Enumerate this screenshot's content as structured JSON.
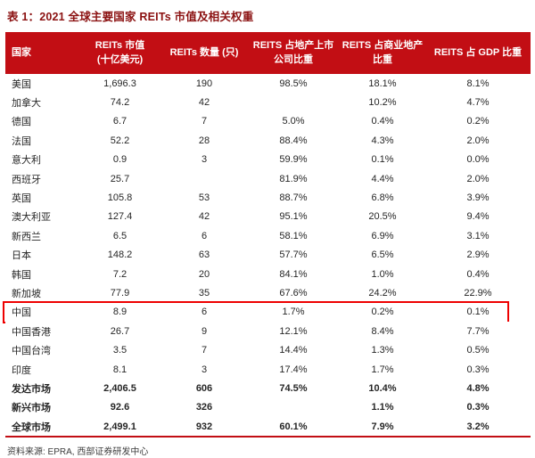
{
  "title": "表 1：2021 全球主要国家 REITs 市值及相关权重",
  "source": "资料来源: EPRA, 西部证券研发中心",
  "colors": {
    "header_bg": "#c20e14",
    "title": "#8b1111",
    "highlight": "#ee0000"
  },
  "table": {
    "columns": [
      "国家",
      "REITs 市值\n(十亿美元)",
      "REITs 数量 (只)",
      "REITS 占地产上市\n公司比重",
      "REITS 占商业地产\n比重",
      "REITS 占 GDP 比重"
    ],
    "rows": [
      {
        "country": "美国",
        "values": [
          "1,696.3",
          "190",
          "98.5%",
          "18.1%",
          "8.1%"
        ],
        "bold": false,
        "highlight": false
      },
      {
        "country": "加拿大",
        "values": [
          "74.2",
          "42",
          "",
          "10.2%",
          "4.7%"
        ],
        "bold": false,
        "highlight": false
      },
      {
        "country": "德国",
        "values": [
          "6.7",
          "7",
          "5.0%",
          "0.4%",
          "0.2%"
        ],
        "bold": false,
        "highlight": false
      },
      {
        "country": "法国",
        "values": [
          "52.2",
          "28",
          "88.4%",
          "4.3%",
          "2.0%"
        ],
        "bold": false,
        "highlight": false
      },
      {
        "country": "意大利",
        "values": [
          "0.9",
          "3",
          "59.9%",
          "0.1%",
          "0.0%"
        ],
        "bold": false,
        "highlight": false
      },
      {
        "country": "西班牙",
        "values": [
          "25.7",
          "",
          "81.9%",
          "4.4%",
          "2.0%"
        ],
        "bold": false,
        "highlight": false
      },
      {
        "country": "英国",
        "values": [
          "105.8",
          "53",
          "88.7%",
          "6.8%",
          "3.9%"
        ],
        "bold": false,
        "highlight": false
      },
      {
        "country": "澳大利亚",
        "values": [
          "127.4",
          "42",
          "95.1%",
          "20.5%",
          "9.4%"
        ],
        "bold": false,
        "highlight": false
      },
      {
        "country": "新西兰",
        "values": [
          "6.5",
          "6",
          "58.1%",
          "6.9%",
          "3.1%"
        ],
        "bold": false,
        "highlight": false
      },
      {
        "country": "日本",
        "values": [
          "148.2",
          "63",
          "57.7%",
          "6.5%",
          "2.9%"
        ],
        "bold": false,
        "highlight": false
      },
      {
        "country": "韩国",
        "values": [
          "7.2",
          "20",
          "84.1%",
          "1.0%",
          "0.4%"
        ],
        "bold": false,
        "highlight": false
      },
      {
        "country": "新加坡",
        "values": [
          "77.9",
          "35",
          "67.6%",
          "24.2%",
          "22.9%"
        ],
        "bold": false,
        "highlight": false
      },
      {
        "country": "中国",
        "values": [
          "8.9",
          "6",
          "1.7%",
          "0.2%",
          "0.1%"
        ],
        "bold": false,
        "highlight": true
      },
      {
        "country": "中国香港",
        "values": [
          "26.7",
          "9",
          "12.1%",
          "8.4%",
          "7.7%"
        ],
        "bold": false,
        "highlight": false
      },
      {
        "country": "中国台湾",
        "values": [
          "3.5",
          "7",
          "14.4%",
          "1.3%",
          "0.5%"
        ],
        "bold": false,
        "highlight": false
      },
      {
        "country": "印度",
        "values": [
          "8.1",
          "3",
          "17.4%",
          "1.7%",
          "0.3%"
        ],
        "bold": false,
        "highlight": false
      },
      {
        "country": "发达市场",
        "values": [
          "2,406.5",
          "606",
          "74.5%",
          "10.4%",
          "4.8%"
        ],
        "bold": true,
        "highlight": false
      },
      {
        "country": "新兴市场",
        "values": [
          "92.6",
          "326",
          "",
          "1.1%",
          "0.3%"
        ],
        "bold": true,
        "highlight": false
      },
      {
        "country": "全球市场",
        "values": [
          "2,499.1",
          "932",
          "60.1%",
          "7.9%",
          "3.2%"
        ],
        "bold": true,
        "highlight": false
      }
    ]
  }
}
